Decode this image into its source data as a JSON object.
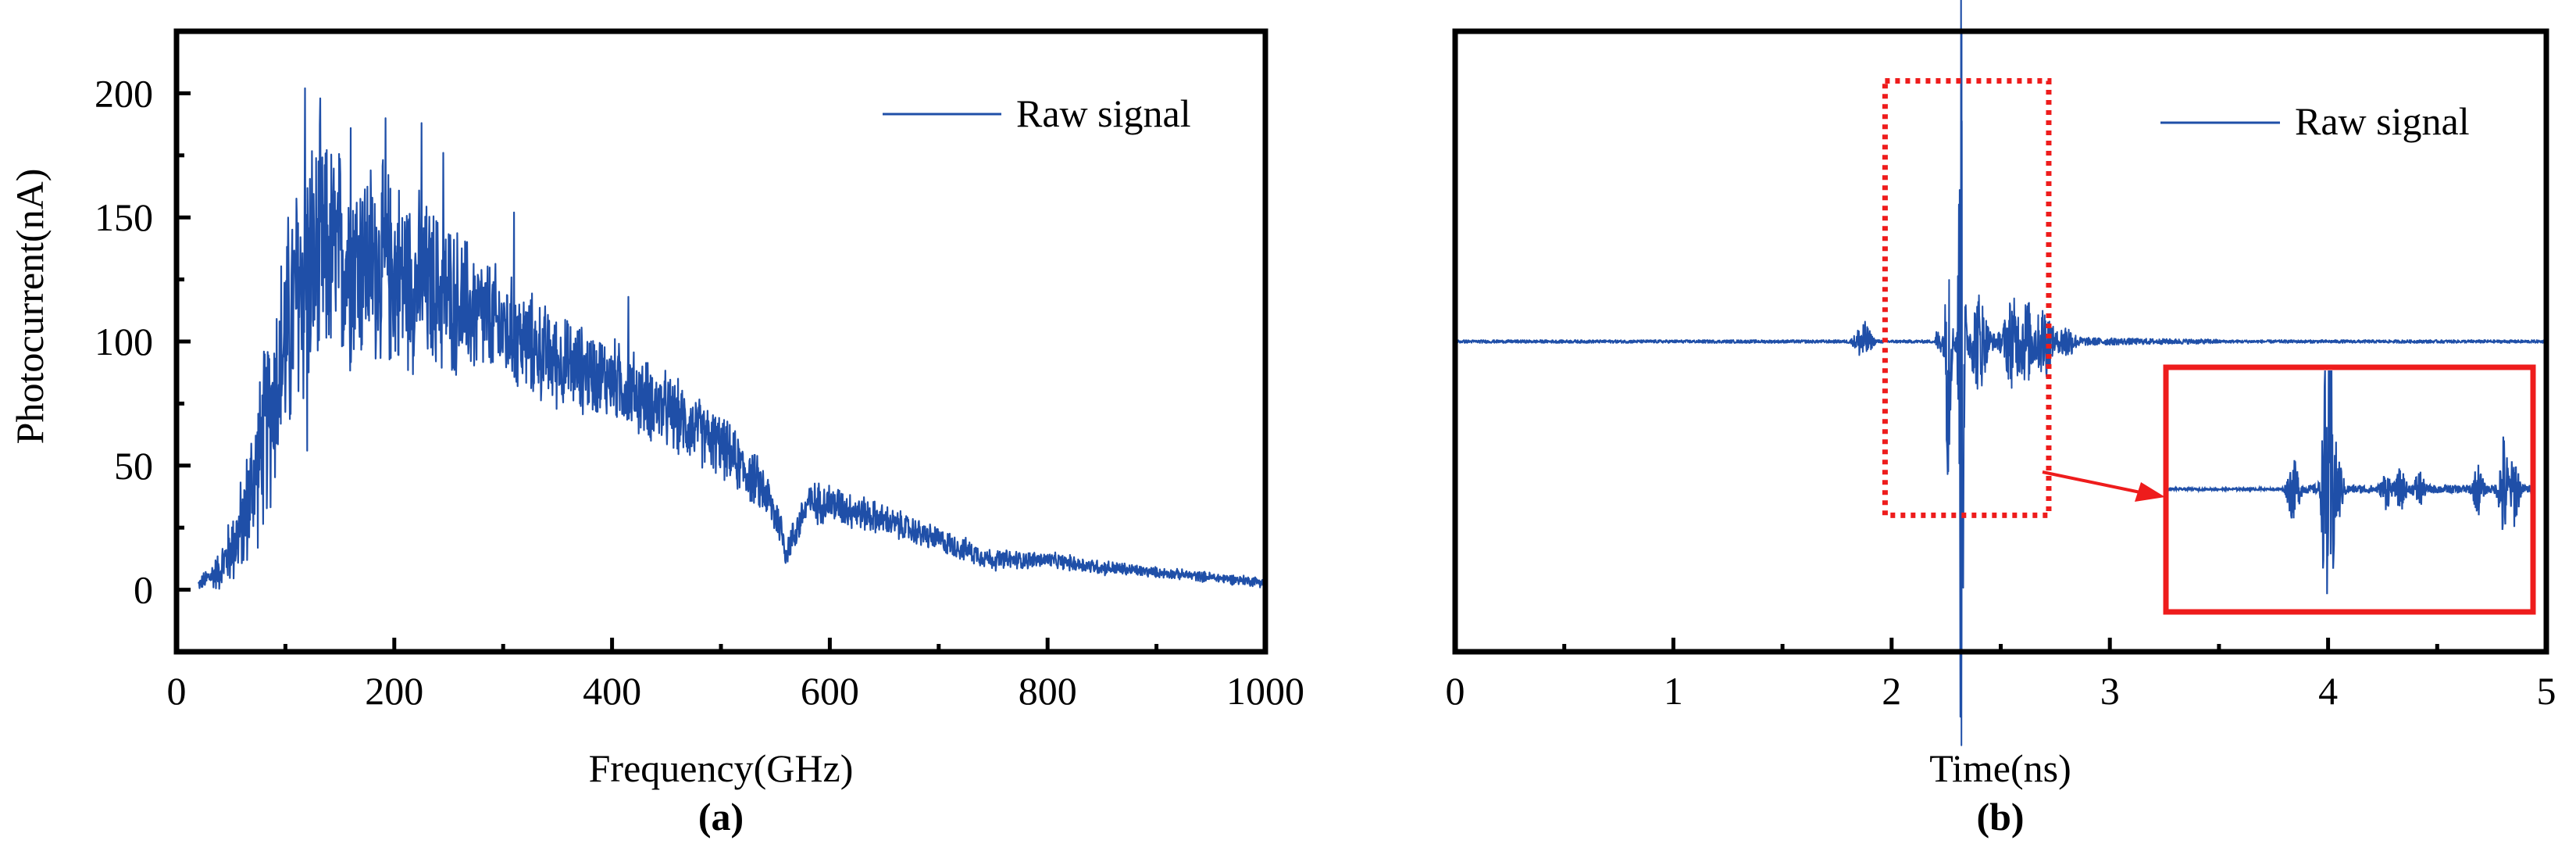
{
  "chart_data": [
    {
      "type": "line",
      "panel": "(a)",
      "xlabel": "Frequency(GHz)",
      "ylabel": "Photocurrent(nA)",
      "xlim": [
        0,
        1000
      ],
      "ylim": [
        -25,
        225
      ],
      "xticks": [
        0,
        200,
        400,
        600,
        800,
        1000
      ],
      "yticks": [
        0,
        50,
        100,
        150,
        200
      ],
      "legend": "Raw signal",
      "legend_position": "top-right",
      "series": [
        {
          "name": "Raw signal",
          "color": "#1f4fa8",
          "envelope_x": [
            20,
            40,
            60,
            80,
            100,
            115,
            140,
            180,
            200,
            250,
            300,
            350,
            400,
            450,
            500,
            540,
            555,
            560,
            580,
            600,
            650,
            700,
            750,
            760,
            800,
            850,
            900,
            950,
            1000
          ],
          "envelope_mean": [
            2,
            8,
            25,
            60,
            100,
            125,
            135,
            132,
            128,
            118,
            105,
            92,
            85,
            72,
            58,
            40,
            25,
            15,
            35,
            35,
            28,
            20,
            12,
            12,
            12,
            9,
            7,
            5,
            3
          ],
          "envelope_amp": [
            2,
            8,
            20,
            35,
            45,
            55,
            45,
            40,
            38,
            30,
            22,
            18,
            16,
            15,
            12,
            10,
            8,
            6,
            8,
            8,
            6,
            5,
            4,
            4,
            3,
            3,
            2,
            2,
            2
          ],
          "peak_value": 202
        }
      ]
    },
    {
      "type": "line",
      "panel": "(b)",
      "xlabel": "Time(ns)",
      "ylabel": "",
      "xlim": [
        0,
        5
      ],
      "ylim": [
        -25,
        225
      ],
      "xticks": [
        0,
        1,
        2,
        3,
        4,
        5
      ],
      "yticks": [],
      "legend": "Raw signal",
      "legend_position": "top-right",
      "baseline": 100,
      "main_pulse_time": 2.32,
      "series": [
        {
          "name": "Raw signal",
          "color": "#1f4fa8",
          "events": [
            {
              "t": 1.87,
              "amp": 8
            },
            {
              "t": 2.32,
              "amp": 190
            },
            {
              "t": 2.26,
              "amp": 60
            },
            {
              "t": 2.4,
              "amp": 18
            },
            {
              "t": 2.55,
              "amp": 16
            },
            {
              "t": 2.62,
              "amp": 15
            },
            {
              "t": 2.7,
              "amp": 14
            },
            {
              "t": 2.8,
              "amp": 6
            }
          ]
        }
      ],
      "zoom_region": {
        "x": [
          1.97,
          2.72
        ],
        "y": [
          30,
          205
        ]
      },
      "inset": {
        "description": "zoomed view of highlighted region"
      }
    }
  ],
  "colors": {
    "signal": "#1f4fa8",
    "annotation": "#ee1c1c"
  }
}
